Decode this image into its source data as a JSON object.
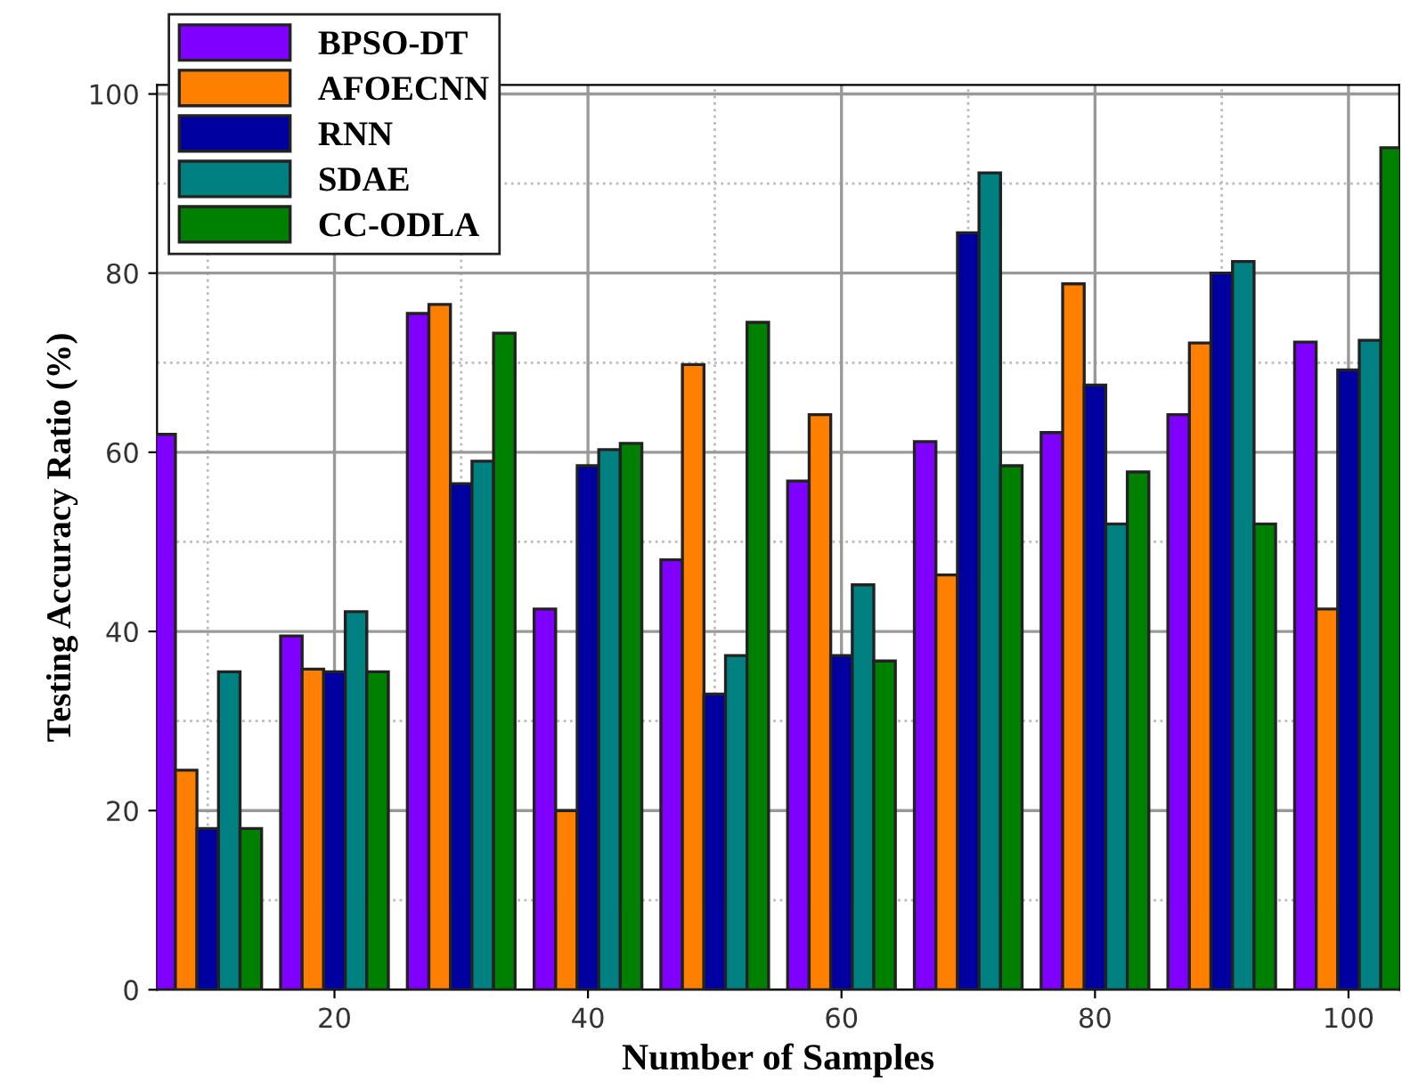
{
  "chart_data": {
    "type": "bar",
    "xlabel": "Number of Samples",
    "ylabel": "Testing Accuracy Ratio (%)",
    "x": [
      10,
      20,
      30,
      40,
      50,
      60,
      70,
      80,
      90,
      100
    ],
    "xlim": [
      6,
      104
    ],
    "xticks": [
      20,
      40,
      60,
      80,
      100
    ],
    "ylim": [
      0,
      101
    ],
    "yticks": [
      0,
      20,
      40,
      60,
      80,
      100
    ],
    "grid": true,
    "legend": "top left",
    "series": [
      {
        "name": "BPSO-DT",
        "color": "#8000ff",
        "values": [
          62,
          39.5,
          75.5,
          42.5,
          48,
          56.8,
          61.2,
          62.2,
          64.2,
          72.3
        ]
      },
      {
        "name": "AFOECNN",
        "color": "#ff8000",
        "values": [
          24.5,
          35.8,
          76.5,
          20,
          69.8,
          64.2,
          46.3,
          78.8,
          72.2,
          42.5
        ]
      },
      {
        "name": "RNN",
        "color": "#0000a0",
        "values": [
          18,
          35.5,
          56.5,
          58.5,
          33,
          37.3,
          84.5,
          67.5,
          80,
          69.2
        ]
      },
      {
        "name": "SDAE",
        "color": "#008080",
        "values": [
          35.5,
          42.2,
          59,
          60.3,
          37.3,
          45.2,
          91.2,
          52,
          81.3,
          72.5
        ]
      },
      {
        "name": "CC-ODLA",
        "color": "#008000",
        "values": [
          18,
          35.5,
          73.3,
          61,
          74.5,
          36.7,
          58.5,
          57.8,
          52,
          94
        ]
      }
    ]
  }
}
